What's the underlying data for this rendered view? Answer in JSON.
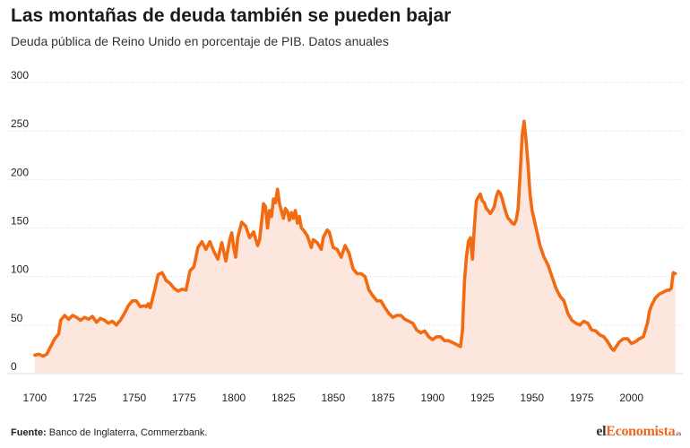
{
  "header": {
    "title": "Las montañas de deuda también se pueden bajar",
    "subtitle": "Deuda pública de Reino Unido en porcentaje de PIB. Datos anuales"
  },
  "footer": {
    "source_label": "Fuente:",
    "source_text": " Banco de Inglaterra, Commerzbank."
  },
  "logo": {
    "part1": "el",
    "part2": "Economista",
    "part3": ".es"
  },
  "colors": {
    "line": "#f26a12",
    "area": "#fde6dd",
    "grid": "#d9d9d9",
    "accent": "#e8691f"
  },
  "chart_data": {
    "type": "area",
    "title": "Las montañas de deuda también se pueden bajar",
    "subtitle": "Deuda pública de Reino Unido en porcentaje de PIB. Datos anuales",
    "xlim": [
      1696,
      2024
    ],
    "ylim": [
      -12,
      300
    ],
    "x_ticks": [
      1700,
      1725,
      1750,
      1775,
      1800,
      1825,
      1850,
      1875,
      1900,
      1925,
      1950,
      1975,
      2000
    ],
    "y_ticks": [
      0,
      50,
      100,
      150,
      200,
      250,
      300
    ],
    "grid": true,
    "legend": "none",
    "series": [
      {
        "x": [
          1700,
          1702,
          1704,
          1706,
          1708,
          1710,
          1712,
          1713,
          1715,
          1717,
          1719,
          1721,
          1723,
          1725,
          1727,
          1729,
          1731,
          1733,
          1735,
          1737,
          1739,
          1741,
          1743,
          1745,
          1747,
          1749,
          1751,
          1753,
          1755,
          1756,
          1757,
          1758,
          1760,
          1762,
          1764,
          1766,
          1768,
          1770,
          1772,
          1774,
          1776,
          1778,
          1780,
          1782,
          1784,
          1785,
          1786,
          1788,
          1790,
          1792,
          1794,
          1796,
          1798,
          1799,
          1800,
          1801,
          1802,
          1804,
          1806,
          1808,
          1810,
          1812,
          1813,
          1815,
          1816,
          1817,
          1818,
          1819,
          1820,
          1821,
          1822,
          1823,
          1825,
          1826,
          1827,
          1828,
          1829,
          1830,
          1831,
          1832,
          1833,
          1834,
          1835,
          1837,
          1839,
          1840,
          1842,
          1844,
          1845,
          1847,
          1848,
          1850,
          1852,
          1854,
          1856,
          1858,
          1860,
          1862,
          1864,
          1866,
          1868,
          1870,
          1872,
          1874,
          1876,
          1878,
          1880,
          1882,
          1884,
          1886,
          1888,
          1890,
          1892,
          1894,
          1896,
          1898,
          1900,
          1902,
          1904,
          1906,
          1908,
          1910,
          1912,
          1914,
          1915,
          1916,
          1917,
          1918,
          1919,
          1920,
          1921,
          1922,
          1923,
          1924,
          1925,
          1926,
          1927,
          1928,
          1929,
          1930,
          1931,
          1932,
          1933,
          1934,
          1935,
          1936,
          1937,
          1938,
          1939,
          1940,
          1941,
          1942,
          1943,
          1944,
          1945,
          1946,
          1947,
          1948,
          1949,
          1950,
          1952,
          1954,
          1956,
          1958,
          1960,
          1962,
          1964,
          1966,
          1968,
          1970,
          1972,
          1974,
          1976,
          1978,
          1980,
          1982,
          1984,
          1986,
          1988,
          1990,
          1991,
          1992,
          1994,
          1996,
          1998,
          2000,
          2002,
          2004,
          2006,
          2008,
          2009,
          2010,
          2012,
          2014,
          2016,
          2018,
          2019,
          2020,
          2021,
          2022
        ],
        "y": [
          19,
          20,
          18,
          20,
          28,
          36,
          41,
          55,
          60,
          56,
          60,
          58,
          55,
          58,
          56,
          59,
          53,
          57,
          55,
          52,
          54,
          50,
          55,
          62,
          70,
          75,
          75,
          69,
          70,
          69,
          72,
          68,
          84,
          102,
          104,
          96,
          93,
          88,
          85,
          87,
          86,
          106,
          110,
          130,
          136,
          132,
          128,
          136,
          126,
          118,
          135,
          116,
          138,
          145,
          130,
          120,
          140,
          156,
          152,
          140,
          146,
          132,
          138,
          175,
          172,
          150,
          168,
          162,
          180,
          176,
          190,
          175,
          160,
          170,
          167,
          158,
          166,
          160,
          168,
          155,
          162,
          150,
          148,
          142,
          130,
          138,
          135,
          128,
          140,
          148,
          146,
          130,
          128,
          120,
          132,
          124,
          108,
          103,
          103,
          100,
          86,
          80,
          75,
          75,
          68,
          62,
          58,
          60,
          60,
          56,
          54,
          52,
          45,
          42,
          44,
          38,
          35,
          38,
          38,
          34,
          34,
          32,
          30,
          28,
          45,
          95,
          120,
          136,
          140,
          118,
          152,
          178,
          182,
          185,
          178,
          176,
          170,
          168,
          165,
          168,
          172,
          182,
          188,
          186,
          180,
          172,
          165,
          160,
          158,
          155,
          154,
          158,
          170,
          205,
          245,
          260,
          240,
          215,
          185,
          168,
          150,
          132,
          120,
          112,
          100,
          88,
          80,
          75,
          62,
          55,
          52,
          50,
          54,
          52,
          45,
          44,
          40,
          38,
          33,
          26,
          24,
          27,
          33,
          36,
          36,
          31,
          33,
          36,
          38,
          52,
          64,
          70,
          78,
          82,
          84,
          86,
          86,
          88,
          104,
          103
        ]
      }
    ]
  }
}
